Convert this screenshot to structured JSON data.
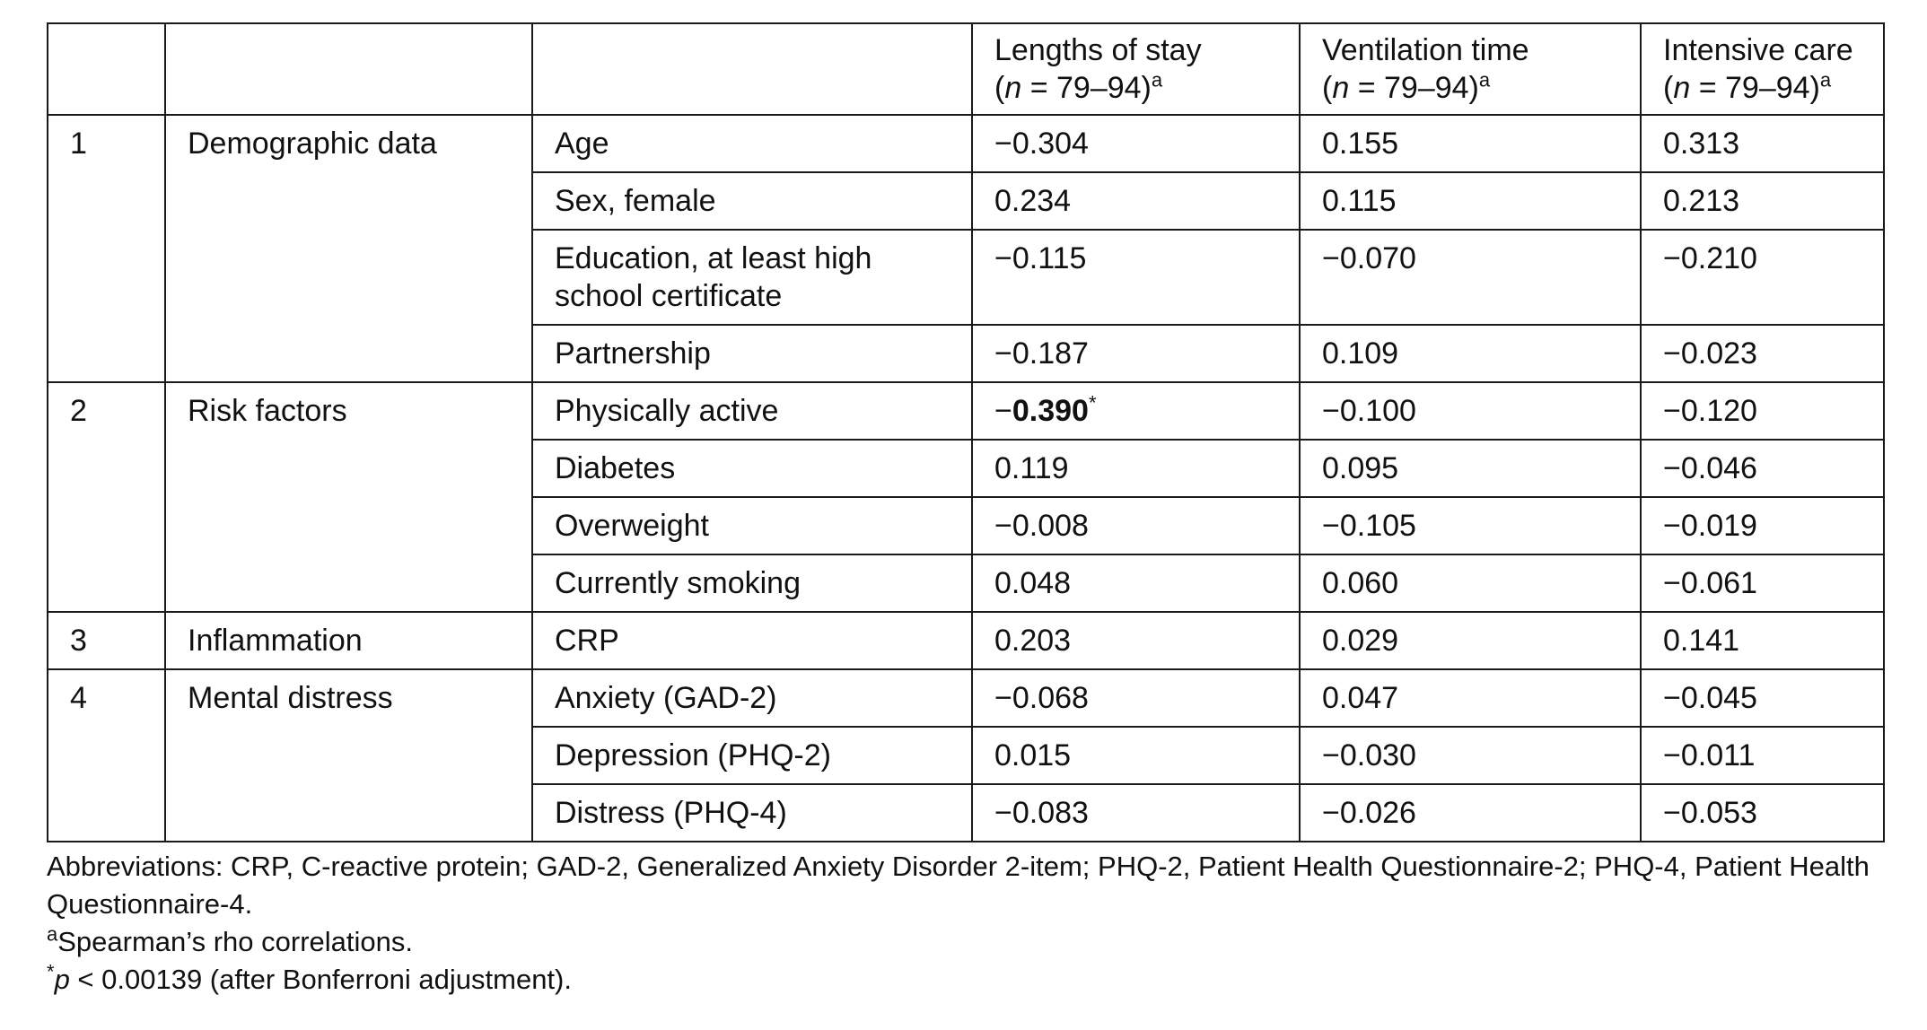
{
  "table": {
    "headers": [
      "",
      "",
      "",
      {
        "title": "Lengths of stay",
        "n_var": "n",
        "n_range": " = 79–94)",
        "sup": "a"
      },
      {
        "title": "Ventilation time",
        "n_var": "n",
        "n_range": " = 79–94)",
        "sup": "a"
      },
      {
        "title": "Intensive care",
        "n_var": "n",
        "n_range": " = 79–94)",
        "sup": "a"
      }
    ],
    "groups": [
      {
        "number": "1",
        "label": "Demographic data",
        "rows": [
          {
            "variable": "Age",
            "values": [
              "−0.304",
              "0.155",
              "0.313"
            ]
          },
          {
            "variable": "Sex, female",
            "values": [
              "0.234",
              "0.115",
              "0.213"
            ]
          },
          {
            "variable": "Education, at least high school certificate",
            "values": [
              "−0.115",
              "−0.070",
              "−0.210"
            ]
          },
          {
            "variable": "Partnership",
            "values": [
              "−0.187",
              "0.109",
              "−0.023"
            ]
          }
        ]
      },
      {
        "number": "2",
        "label": "Risk factors",
        "rows": [
          {
            "variable": "Physically active",
            "values": [
              "−0.390",
              "−0.100",
              "−0.120"
            ],
            "sig_prefix": "−",
            "sig_value": "0.390",
            "sig_mark": "*"
          },
          {
            "variable": "Diabetes",
            "values": [
              "0.119",
              "0.095",
              "−0.046"
            ]
          },
          {
            "variable": "Overweight",
            "values": [
              "−0.008",
              "−0.105",
              "−0.019"
            ]
          },
          {
            "variable": "Currently smoking",
            "values": [
              "0.048",
              "0.060",
              "−0.061"
            ]
          }
        ]
      },
      {
        "number": "3",
        "label": "Inflammation",
        "rows": [
          {
            "variable": "CRP",
            "values": [
              "0.203",
              "0.029",
              "0.141"
            ]
          }
        ]
      },
      {
        "number": "4",
        "label": "Mental distress",
        "rows": [
          {
            "variable": "Anxiety (GAD-2)",
            "values": [
              "−0.068",
              "0.047",
              "−0.045"
            ]
          },
          {
            "variable": "Depression (PHQ-2)",
            "values": [
              "0.015",
              "−0.030",
              "−0.011"
            ]
          },
          {
            "variable": "Distress (PHQ-4)",
            "values": [
              "−0.083",
              "−0.026",
              "−0.053"
            ]
          }
        ]
      }
    ]
  },
  "notes": {
    "abbreviations": "Abbreviations: CRP, C-reactive protein; GAD-2, Generalized Anxiety Disorder 2-item; PHQ-2, Patient Health Questionnaire-2; PHQ-4, Patient Health Questionnaire-4.",
    "footnote_a_mark": "a",
    "footnote_a_text": "Spearman’s rho correlations.",
    "footnote_star_mark": "*",
    "footnote_star_var": "p",
    "footnote_star_text": " < 0.00139 (after Bonferroni adjustment)."
  }
}
